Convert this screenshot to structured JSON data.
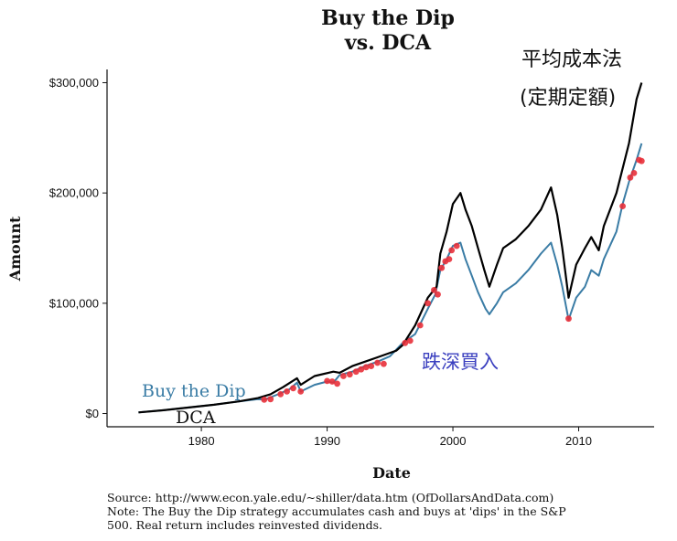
{
  "chart_data": {
    "type": "line",
    "title_line1": "Buy the Dip",
    "title_line2": "vs. DCA",
    "xlabel": "Date",
    "ylabel": "Amount",
    "xlim": [
      1972.5,
      2016
    ],
    "ylim": [
      -12000,
      312000
    ],
    "x_ticks": [
      1980,
      1990,
      2000,
      2010
    ],
    "x_tick_labels": [
      "1980",
      "1990",
      "2000",
      "2010"
    ],
    "y_ticks": [
      0,
      100000,
      200000,
      300000
    ],
    "y_tick_labels": [
      "$0",
      "$100,000",
      "$200,000",
      "$300,000"
    ],
    "series": [
      {
        "name": "DCA",
        "color": "#000000",
        "points": [
          [
            1975,
            1000
          ],
          [
            1977,
            3000
          ],
          [
            1979,
            5500
          ],
          [
            1981,
            8000
          ],
          [
            1983,
            11000
          ],
          [
            1984.5,
            14000
          ],
          [
            1985.5,
            17500
          ],
          [
            1986.5,
            24000
          ],
          [
            1987.6,
            32000
          ],
          [
            1987.9,
            26000
          ],
          [
            1989,
            34000
          ],
          [
            1990.5,
            38000
          ],
          [
            1991,
            37000
          ],
          [
            1992,
            43000
          ],
          [
            1993,
            47000
          ],
          [
            1994,
            51000
          ],
          [
            1995,
            55000
          ],
          [
            1995.5,
            57000
          ],
          [
            1996,
            62000
          ],
          [
            1997,
            80000
          ],
          [
            1998,
            105000
          ],
          [
            1998.7,
            115000
          ],
          [
            1999,
            145000
          ],
          [
            1999.5,
            165000
          ],
          [
            2000,
            190000
          ],
          [
            2000.6,
            200000
          ],
          [
            2001,
            185000
          ],
          [
            2001.5,
            170000
          ],
          [
            2002,
            150000
          ],
          [
            2002.5,
            130000
          ],
          [
            2002.9,
            115000
          ],
          [
            2003.5,
            135000
          ],
          [
            2004,
            150000
          ],
          [
            2005,
            158000
          ],
          [
            2006,
            170000
          ],
          [
            2007,
            185000
          ],
          [
            2007.8,
            205000
          ],
          [
            2008.3,
            180000
          ],
          [
            2008.7,
            150000
          ],
          [
            2009.2,
            105000
          ],
          [
            2009.8,
            135000
          ],
          [
            2010.5,
            150000
          ],
          [
            2011,
            160000
          ],
          [
            2011.6,
            148000
          ],
          [
            2012,
            170000
          ],
          [
            2013,
            200000
          ],
          [
            2014,
            245000
          ],
          [
            2014.6,
            285000
          ],
          [
            2015,
            300000
          ]
        ]
      },
      {
        "name": "Buy the Dip",
        "color": "#3a7ca5",
        "points": [
          [
            1975,
            1000
          ],
          [
            1977,
            3000
          ],
          [
            1979,
            5500
          ],
          [
            1981,
            8000
          ],
          [
            1983,
            11000
          ],
          [
            1984.5,
            13000
          ],
          [
            1985,
            12500
          ],
          [
            1986,
            17000
          ],
          [
            1987,
            22000
          ],
          [
            1987.6,
            28000
          ],
          [
            1987.9,
            20000
          ],
          [
            1989,
            26000
          ],
          [
            1990,
            29000
          ],
          [
            1990.5,
            28000
          ],
          [
            1991,
            35000
          ],
          [
            1992,
            38000
          ],
          [
            1993,
            43000
          ],
          [
            1994,
            47000
          ],
          [
            1995,
            52000
          ],
          [
            1996,
            64000
          ],
          [
            1997,
            72000
          ],
          [
            1998,
            95000
          ],
          [
            1998.6,
            108000
          ],
          [
            1999,
            130000
          ],
          [
            1999.5,
            140000
          ],
          [
            2000,
            152000
          ],
          [
            2000.6,
            155000
          ],
          [
            2001,
            140000
          ],
          [
            2001.5,
            125000
          ],
          [
            2002,
            110000
          ],
          [
            2002.6,
            95000
          ],
          [
            2002.9,
            90000
          ],
          [
            2003.5,
            100000
          ],
          [
            2004,
            110000
          ],
          [
            2005,
            118000
          ],
          [
            2006,
            130000
          ],
          [
            2007,
            145000
          ],
          [
            2007.8,
            155000
          ],
          [
            2008.3,
            135000
          ],
          [
            2008.7,
            115000
          ],
          [
            2009.2,
            85000
          ],
          [
            2009.8,
            105000
          ],
          [
            2010.5,
            115000
          ],
          [
            2011,
            130000
          ],
          [
            2011.6,
            125000
          ],
          [
            2012,
            140000
          ],
          [
            2013,
            165000
          ],
          [
            2013.5,
            190000
          ],
          [
            2014,
            210000
          ],
          [
            2014.6,
            230000
          ],
          [
            2015,
            245000
          ]
        ]
      }
    ],
    "dips": {
      "color": "#e8303a",
      "points": [
        [
          1985,
          12500
        ],
        [
          1985.5,
          13000
        ],
        [
          1986.3,
          17500
        ],
        [
          1986.8,
          20000
        ],
        [
          1987.3,
          23000
        ],
        [
          1987.9,
          20000
        ],
        [
          1990,
          29500
        ],
        [
          1990.4,
          29000
        ],
        [
          1990.8,
          27000
        ],
        [
          1991.3,
          34000
        ],
        [
          1991.8,
          35500
        ],
        [
          1992.3,
          38000
        ],
        [
          1992.7,
          40000
        ],
        [
          1993.1,
          42000
        ],
        [
          1993.5,
          43000
        ],
        [
          1994,
          46000
        ],
        [
          1994.5,
          45000
        ],
        [
          1996.2,
          64000
        ],
        [
          1996.6,
          66000
        ],
        [
          1997.4,
          80000
        ],
        [
          1998,
          100000
        ],
        [
          1998.5,
          112000
        ],
        [
          1998.8,
          108000
        ],
        [
          1999.1,
          132000
        ],
        [
          1999.4,
          138000
        ],
        [
          1999.7,
          140000
        ],
        [
          1999.9,
          148000
        ],
        [
          2000.3,
          152000
        ],
        [
          2009.2,
          86000
        ],
        [
          2013.5,
          188000
        ],
        [
          2014.1,
          214000
        ],
        [
          2014.4,
          218000
        ],
        [
          2014.8,
          230000
        ],
        [
          2015,
          229000
        ]
      ]
    },
    "series_label_dca": "DCA",
    "series_label_dip": "Buy the Dip"
  },
  "annotations": {
    "dca_cn_line1": "平均成本法",
    "dca_cn_line2": "(定期定額)",
    "dip_cn": "跌深買入"
  },
  "footnote": {
    "line1": "Source:  http://www.econ.yale.edu/~shiller/data.htm (OfDollarsAndData.com)",
    "line2": "Note: The Buy the Dip strategy accumulates cash and buys at 'dips' in the S&P",
    "line3": "500. Real return includes reinvested dividends."
  }
}
